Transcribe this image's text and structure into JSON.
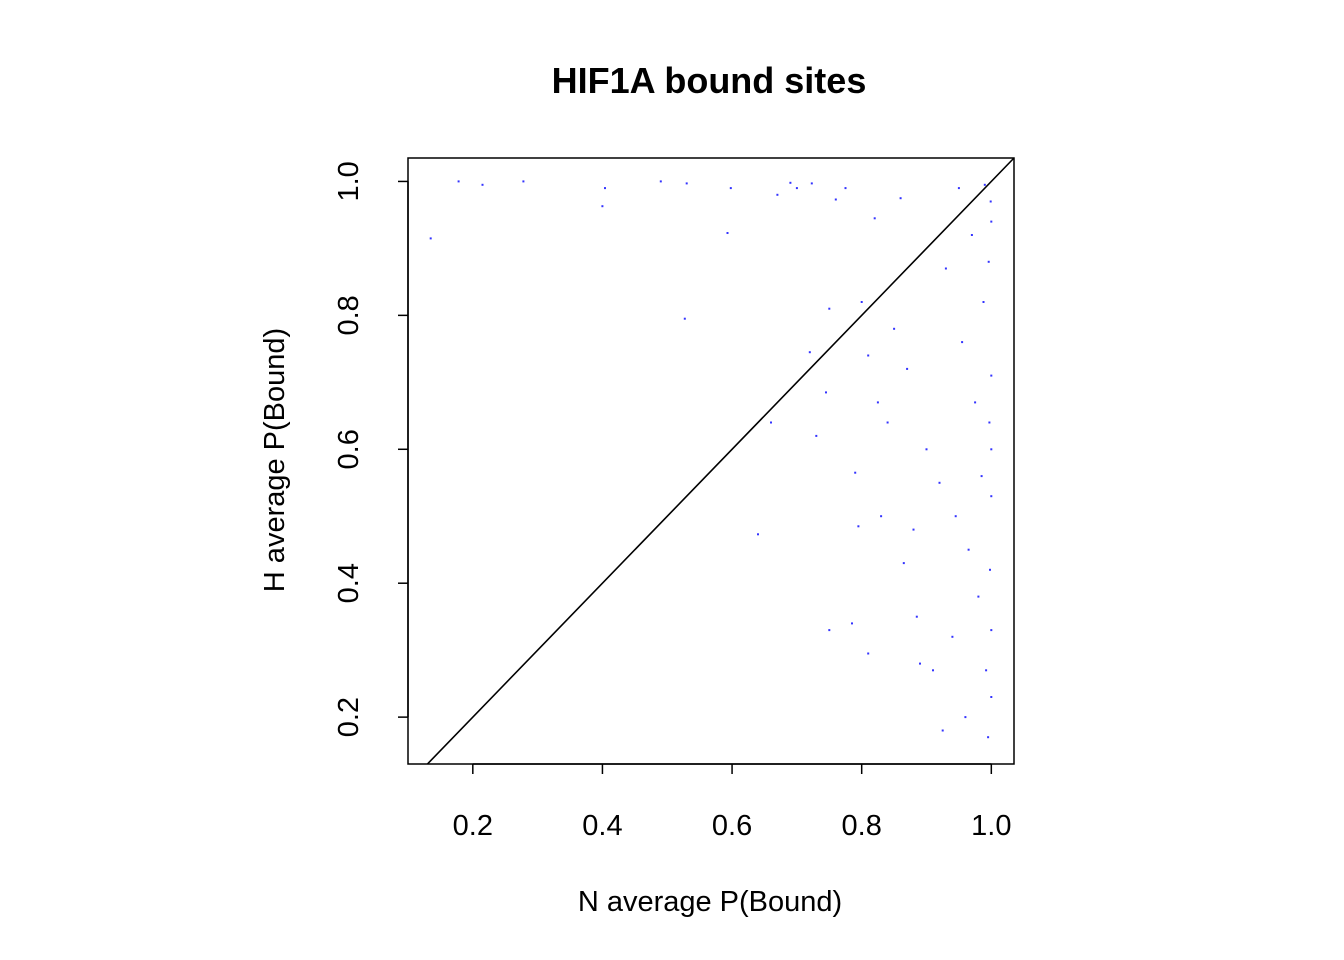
{
  "chart_data": {
    "type": "scatter",
    "title": "HIF1A bound sites",
    "xlabel": "N average P(Bound)",
    "ylabel": "H average P(Bound)",
    "xlim": [
      0.1,
      1.035
    ],
    "ylim": [
      0.13,
      1.035
    ],
    "xticks": [
      "0.2",
      "0.4",
      "0.6",
      "0.8",
      "1.0"
    ],
    "yticks": [
      "0.2",
      "0.4",
      "0.6",
      "0.8",
      "1.0"
    ],
    "grid": false,
    "point_color": "#3333ff",
    "reference_line": {
      "type": "identity",
      "color": "#000000"
    },
    "series": [
      {
        "points": [
          [
            0.135,
            0.915
          ],
          [
            0.178,
            1.0
          ],
          [
            0.215,
            0.995
          ],
          [
            0.278,
            1.0
          ],
          [
            0.4,
            0.963
          ],
          [
            0.404,
            0.99
          ],
          [
            0.49,
            1.0
          ],
          [
            0.53,
            0.997
          ],
          [
            0.527,
            0.795
          ],
          [
            0.593,
            0.923
          ],
          [
            0.598,
            0.99
          ],
          [
            0.64,
            0.473
          ],
          [
            0.66,
            0.64
          ],
          [
            0.67,
            0.98
          ],
          [
            0.69,
            0.998
          ],
          [
            0.7,
            0.99
          ],
          [
            0.723,
            0.997
          ],
          [
            0.73,
            0.62
          ],
          [
            0.72,
            0.745
          ],
          [
            0.75,
            0.81
          ],
          [
            0.75,
            0.33
          ],
          [
            0.745,
            0.685
          ],
          [
            0.76,
            0.973
          ],
          [
            0.775,
            0.99
          ],
          [
            0.785,
            0.34
          ],
          [
            0.79,
            0.565
          ],
          [
            0.795,
            0.485
          ],
          [
            0.8,
            0.82
          ],
          [
            0.81,
            0.295
          ],
          [
            0.81,
            0.74
          ],
          [
            0.82,
            0.945
          ],
          [
            0.825,
            0.67
          ],
          [
            0.83,
            0.5
          ],
          [
            0.84,
            0.64
          ],
          [
            0.85,
            0.78
          ],
          [
            0.86,
            0.975
          ],
          [
            0.865,
            0.43
          ],
          [
            0.87,
            0.72
          ],
          [
            0.88,
            0.48
          ],
          [
            0.885,
            0.35
          ],
          [
            0.89,
            0.28
          ],
          [
            0.9,
            0.6
          ],
          [
            0.91,
            0.27
          ],
          [
            0.92,
            0.55
          ],
          [
            0.925,
            0.18
          ],
          [
            0.93,
            0.87
          ],
          [
            0.94,
            0.32
          ],
          [
            0.945,
            0.5
          ],
          [
            0.95,
            0.99
          ],
          [
            0.955,
            0.76
          ],
          [
            0.96,
            0.2
          ],
          [
            0.965,
            0.45
          ],
          [
            0.97,
            0.92
          ],
          [
            0.975,
            0.67
          ],
          [
            0.98,
            0.38
          ],
          [
            0.985,
            0.56
          ],
          [
            0.988,
            0.82
          ],
          [
            0.99,
            0.995
          ],
          [
            0.992,
            0.27
          ],
          [
            0.995,
            0.17
          ],
          [
            0.996,
            0.88
          ],
          [
            0.997,
            0.64
          ],
          [
            0.998,
            0.42
          ],
          [
            0.999,
            0.97
          ],
          [
            1.0,
            0.23
          ],
          [
            1.0,
            0.71
          ],
          [
            1.0,
            0.53
          ],
          [
            1.0,
            0.94
          ],
          [
            1.0,
            0.33
          ],
          [
            1.0,
            0.6
          ]
        ]
      }
    ]
  }
}
